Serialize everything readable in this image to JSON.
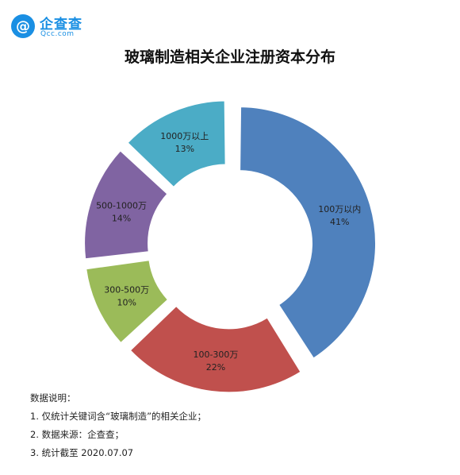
{
  "brand": {
    "name": "企查查",
    "domain": "Qcc.com",
    "badge": "@"
  },
  "title": "玻璃制造相关企业注册资本分布",
  "notes": {
    "heading": "数据说明：",
    "items": [
      "1. 仅统计关键词含“玻璃制造”的相关企业；",
      "2. 数据来源：企查查；",
      "3. 统计截至 2020.07.07"
    ]
  },
  "chart_data": {
    "type": "pie",
    "variant": "donut-exploded",
    "title": "玻璃制造相关企业注册资本分布",
    "categories": [
      "100万以内",
      "100-300万",
      "300-500万",
      "500-1000万",
      "1000万以上"
    ],
    "values": [
      41,
      22,
      10,
      14,
      13
    ],
    "labels": [
      "41%",
      "22%",
      "10%",
      "14%",
      "13%"
    ],
    "colors": [
      "#4f81bd",
      "#c0504d",
      "#9bbb59",
      "#8064a2",
      "#4bacc6"
    ]
  }
}
